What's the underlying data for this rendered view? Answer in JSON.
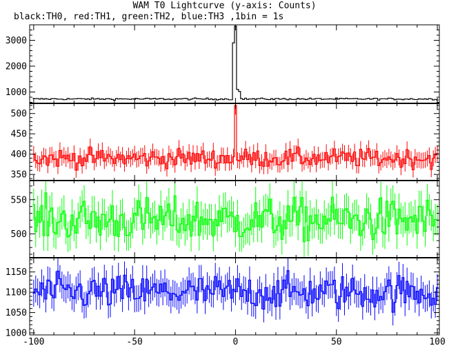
{
  "chart_data": {
    "type": "line",
    "title": "WAM T0 Lightcurve (y-axis: Counts)",
    "subtitle": "black:TH0, red:TH1, green:TH2, blue:TH3 ,1bin = 1s",
    "xlabel": "",
    "ylabel": "",
    "xlim": [
      -102,
      101
    ],
    "x_ticks": [
      -100,
      -50,
      0,
      50,
      100
    ],
    "grid": false,
    "legend": "none",
    "bin_seconds": 1,
    "panels": [
      {
        "name": "TH0",
        "color": "#000000",
        "ylim": [
          560,
          3600
        ],
        "y_ticks": [
          1000,
          2000,
          3000
        ],
        "baseline": 730,
        "noise": 25,
        "error_bars": false,
        "spikes": [
          {
            "x": -1,
            "value": 2900
          },
          {
            "x": 0,
            "value": 3550
          },
          {
            "x": 1,
            "value": 1100
          },
          {
            "x": 2,
            "value": 1020
          }
        ]
      },
      {
        "name": "TH1",
        "color": "#ff0000",
        "ylim": [
          335,
          525
        ],
        "y_ticks": [
          350,
          400,
          450,
          500
        ],
        "baseline": 390,
        "noise": 16,
        "error_bars": true,
        "spikes": [
          {
            "x": 0,
            "value": 520
          }
        ]
      },
      {
        "name": "TH2",
        "color": "#00ff00",
        "ylim": [
          465,
          578
        ],
        "y_ticks": [
          500,
          550
        ],
        "baseline": 520,
        "noise": 22,
        "error_bars": true,
        "spikes": []
      },
      {
        "name": "TH3",
        "color": "#0000ff",
        "ylim": [
          995,
          1185
        ],
        "y_ticks": [
          1000,
          1050,
          1100,
          1150
        ],
        "baseline": 1100,
        "noise": 30,
        "error_bars": true,
        "spikes": []
      }
    ]
  }
}
